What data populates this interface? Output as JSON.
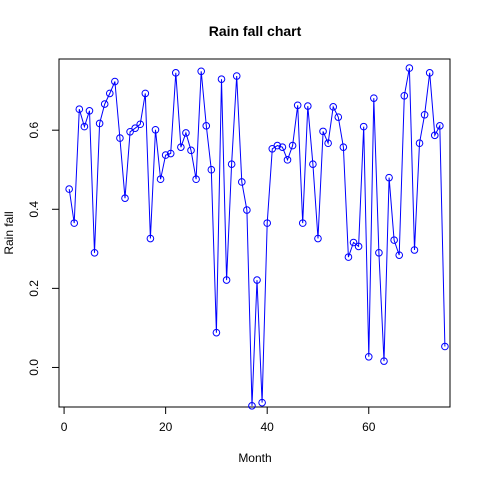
{
  "chart_data": {
    "type": "line",
    "title": "Rain fall chart",
    "xlabel": "Month",
    "ylabel": "Rain fall",
    "xlim": [
      -1,
      76
    ],
    "ylim": [
      -0.1,
      0.78
    ],
    "x_ticks": [
      0,
      20,
      40,
      60
    ],
    "x_tick_labels": [
      "0",
      "20",
      "40",
      "60"
    ],
    "y_ticks": [
      0.0,
      0.2,
      0.4,
      0.6
    ],
    "y_tick_labels": [
      "0.0",
      "0.2",
      "0.4",
      "0.6"
    ],
    "grid": false,
    "markers": "open-circle",
    "line_color": "#0000ff",
    "x": [
      1,
      2,
      3,
      4,
      5,
      6,
      7,
      8,
      9,
      10,
      11,
      12,
      13,
      14,
      15,
      16,
      17,
      18,
      19,
      20,
      21,
      22,
      23,
      24,
      25,
      26,
      27,
      28,
      29,
      30,
      31,
      32,
      33,
      34,
      35,
      36,
      37,
      38,
      39,
      40,
      41,
      42,
      43,
      44,
      45,
      46,
      47,
      48,
      49,
      50,
      51,
      52,
      53,
      54,
      55,
      56,
      57,
      58,
      59,
      60,
      61,
      62,
      63,
      64,
      65,
      66,
      67,
      68,
      69,
      70,
      71,
      72,
      73,
      74,
      75
    ],
    "values": [
      0.451,
      0.365,
      0.653,
      0.609,
      0.649,
      0.29,
      0.617,
      0.666,
      0.693,
      0.723,
      0.58,
      0.428,
      0.596,
      0.605,
      0.615,
      0.693,
      0.326,
      0.601,
      0.476,
      0.537,
      0.541,
      0.745,
      0.557,
      0.593,
      0.549,
      0.476,
      0.749,
      0.611,
      0.5,
      0.088,
      0.729,
      0.221,
      0.514,
      0.737,
      0.469,
      0.398,
      -0.097,
      0.221,
      -0.089,
      0.365,
      0.553,
      0.561,
      0.557,
      0.525,
      0.561,
      0.663,
      0.365,
      0.661,
      0.514,
      0.326,
      0.597,
      0.567,
      0.659,
      0.633,
      0.557,
      0.279,
      0.316,
      0.306,
      0.609,
      0.027,
      0.681,
      0.29,
      0.016,
      0.48,
      0.322,
      0.284,
      0.687,
      0.757,
      0.297,
      0.567,
      0.639,
      0.745,
      0.587,
      0.611,
      0.053
    ]
  }
}
